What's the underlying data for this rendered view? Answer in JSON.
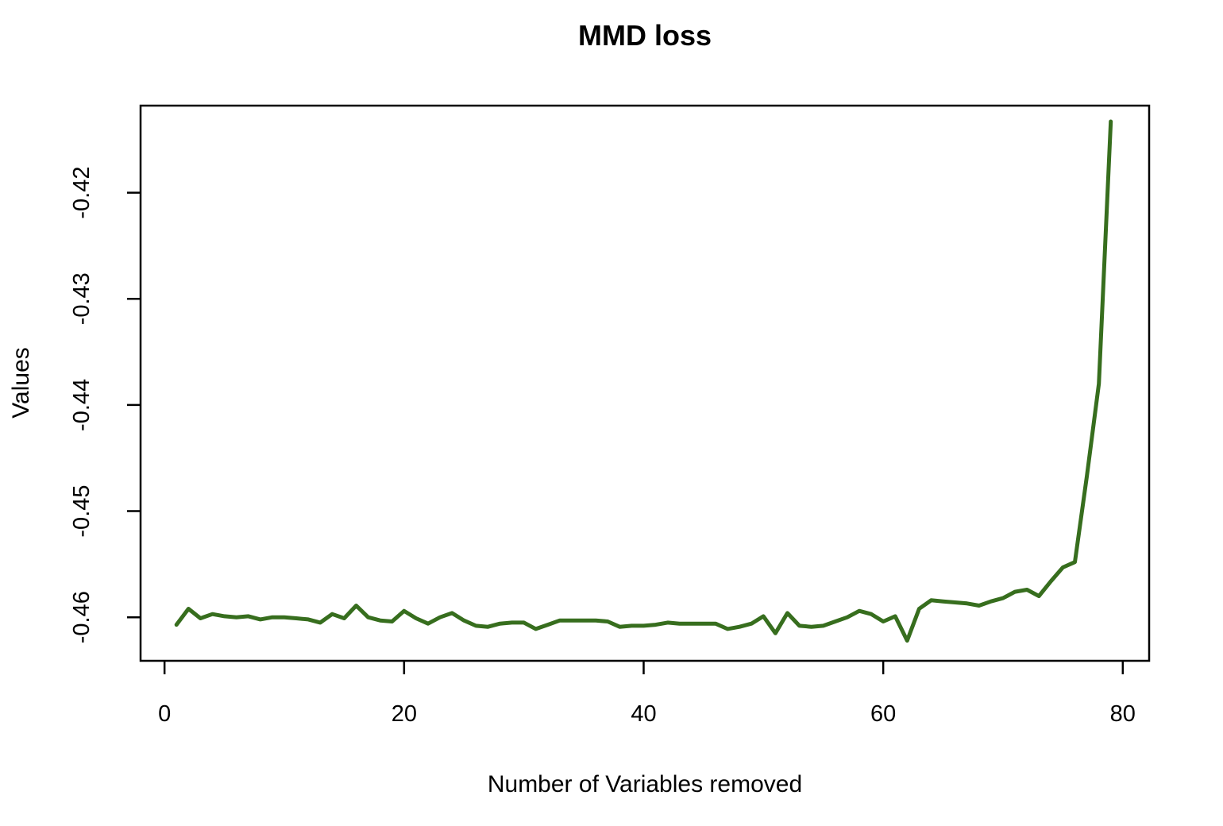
{
  "chart_data": {
    "type": "line",
    "title": "MMD loss",
    "xlabel": "Number of Variables removed",
    "ylabel": "Values",
    "grid": false,
    "legend": null,
    "background_color": "#ffffff",
    "axis_color": "#000000",
    "line_color": "#376e1e",
    "xlim": [
      -2.0,
      82.2
    ],
    "ylim": [
      -0.4641,
      -0.4118
    ],
    "x_ticks": [
      {
        "value": 0,
        "label": "0"
      },
      {
        "value": 20,
        "label": "20"
      },
      {
        "value": 40,
        "label": "40"
      },
      {
        "value": 60,
        "label": "60"
      },
      {
        "value": 80,
        "label": "80"
      }
    ],
    "y_ticks": [
      {
        "value": -0.42,
        "label": "-0.42"
      },
      {
        "value": -0.43,
        "label": "-0.43"
      },
      {
        "value": -0.44,
        "label": "-0.44"
      },
      {
        "value": -0.45,
        "label": "-0.45"
      },
      {
        "value": -0.46,
        "label": "-0.46"
      }
    ],
    "series": [
      {
        "name": "MMD loss",
        "x": [
          1,
          2,
          3,
          4,
          5,
          6,
          7,
          8,
          9,
          10,
          11,
          12,
          13,
          14,
          15,
          16,
          17,
          18,
          19,
          20,
          21,
          22,
          23,
          24,
          25,
          26,
          27,
          28,
          29,
          30,
          31,
          32,
          33,
          34,
          35,
          36,
          37,
          38,
          39,
          40,
          41,
          42,
          43,
          44,
          45,
          46,
          47,
          48,
          49,
          50,
          51,
          52,
          53,
          54,
          55,
          56,
          57,
          58,
          59,
          60,
          61,
          62,
          63,
          64,
          65,
          66,
          67,
          68,
          69,
          70,
          71,
          72,
          73,
          74,
          75,
          76,
          77,
          78,
          79
        ],
        "y": [
          -0.4607,
          -0.4592,
          -0.4601,
          -0.4597,
          -0.4599,
          -0.46,
          -0.4599,
          -0.4602,
          -0.46,
          -0.46,
          -0.4601,
          -0.4602,
          -0.4605,
          -0.4597,
          -0.4601,
          -0.4589,
          -0.46,
          -0.4603,
          -0.4604,
          -0.4594,
          -0.4601,
          -0.4606,
          -0.46,
          -0.4596,
          -0.4603,
          -0.4608,
          -0.4609,
          -0.4606,
          -0.4605,
          -0.4605,
          -0.4611,
          -0.4607,
          -0.4603,
          -0.4603,
          -0.4603,
          -0.4603,
          -0.4604,
          -0.4609,
          -0.4608,
          -0.4608,
          -0.4607,
          -0.4605,
          -0.4606,
          -0.4606,
          -0.4606,
          -0.4606,
          -0.4611,
          -0.4609,
          -0.4606,
          -0.4599,
          -0.4615,
          -0.4596,
          -0.4608,
          -0.4609,
          -0.4608,
          -0.4604,
          -0.46,
          -0.4594,
          -0.4597,
          -0.4604,
          -0.4599,
          -0.4622,
          -0.4592,
          -0.4584,
          -0.4585,
          -0.4586,
          -0.4587,
          -0.4589,
          -0.4585,
          -0.4582,
          -0.4576,
          -0.4574,
          -0.458,
          -0.4566,
          -0.4553,
          -0.4548,
          -0.4467,
          -0.438,
          -0.4133
        ]
      }
    ]
  }
}
